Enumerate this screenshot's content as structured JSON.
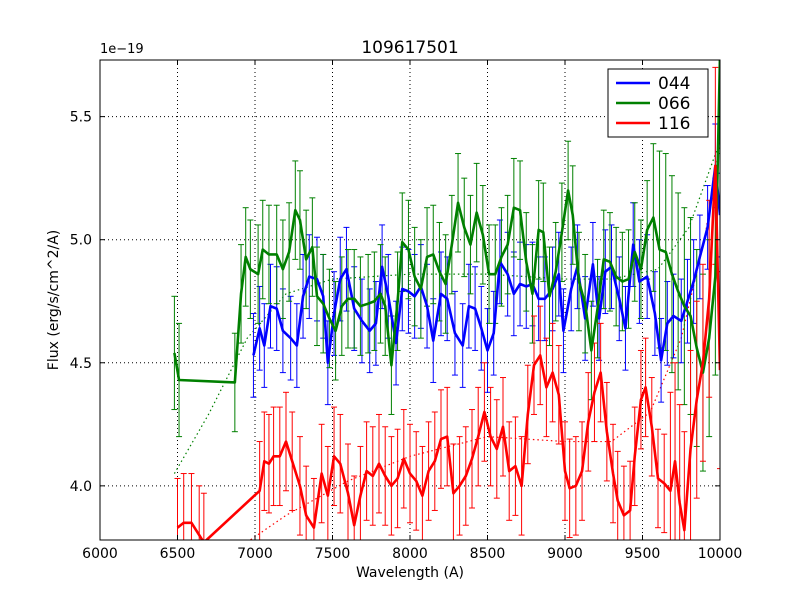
{
  "chart_data": {
    "type": "line",
    "title": "109617501",
    "xlabel": "Wavelength (A)",
    "ylabel": "Flux (erg/s/cm^2/A)",
    "y_offset_label": "1e−19",
    "xlim": [
      6000,
      10000
    ],
    "ylim": [
      3.78,
      5.73
    ],
    "x_ticks": [
      6000,
      6500,
      7000,
      7500,
      8000,
      8500,
      9000,
      9500,
      10000
    ],
    "x_tick_labels": [
      "6000",
      "6500",
      "7000",
      "7500",
      "8000",
      "8500",
      "9000",
      "9500",
      "10000"
    ],
    "y_ticks": [
      4.0,
      4.5,
      5.0,
      5.5
    ],
    "y_tick_labels": [
      "4.0",
      "4.5",
      "5.0",
      "5.5"
    ],
    "grid": true,
    "legend_position": "top-right",
    "series": [
      {
        "name": "044",
        "color": "#0000ff",
        "x": [
          6990,
          7030,
          7060,
          7100,
          7140,
          7180,
          7230,
          7270,
          7310,
          7350,
          7400,
          7440,
          7470,
          7510,
          7550,
          7590,
          7640,
          7690,
          7740,
          7780,
          7820,
          7860,
          7910,
          7950,
          7990,
          8030,
          8070,
          8110,
          8150,
          8200,
          8240,
          8290,
          8340,
          8380,
          8420,
          8460,
          8500,
          8540,
          8580,
          8630,
          8670,
          8710,
          8750,
          8790,
          8830,
          8870,
          8920,
          8960,
          8990,
          9040,
          9080,
          9130,
          9180,
          9220,
          9260,
          9300,
          9350,
          9390,
          9440,
          9480,
          9530,
          9580,
          9620,
          9660,
          9700,
          9750,
          9790,
          9830,
          9870,
          9920,
          9970,
          10000
        ],
        "y": [
          4.53,
          4.64,
          4.57,
          4.73,
          4.72,
          4.63,
          4.6,
          4.57,
          4.77,
          4.85,
          4.84,
          4.77,
          4.5,
          4.7,
          4.84,
          4.88,
          4.72,
          4.67,
          4.63,
          4.66,
          4.89,
          4.77,
          4.58,
          4.8,
          4.79,
          4.77,
          4.81,
          4.73,
          4.59,
          4.78,
          4.76,
          4.62,
          4.57,
          4.73,
          4.72,
          4.64,
          4.55,
          4.62,
          4.91,
          4.86,
          4.78,
          4.82,
          4.81,
          4.82,
          4.76,
          4.76,
          4.8,
          4.86,
          4.63,
          4.8,
          4.89,
          4.68,
          4.9,
          4.68,
          4.87,
          4.89,
          4.76,
          4.64,
          4.98,
          4.83,
          4.85,
          4.7,
          4.51,
          4.66,
          4.69,
          4.67,
          4.75,
          4.83,
          4.93,
          5.05,
          5.3,
          5.1
        ],
        "err": [
          0.17,
          0.17,
          0.17,
          0.17,
          0.17,
          0.17,
          0.17,
          0.17,
          0.17,
          0.17,
          0.17,
          0.17,
          0.17,
          0.17,
          0.17,
          0.17,
          0.17,
          0.17,
          0.17,
          0.17,
          0.17,
          0.17,
          0.17,
          0.17,
          0.17,
          0.17,
          0.17,
          0.17,
          0.17,
          0.17,
          0.17,
          0.17,
          0.17,
          0.17,
          0.17,
          0.17,
          0.17,
          0.17,
          0.17,
          0.17,
          0.17,
          0.17,
          0.17,
          0.17,
          0.17,
          0.17,
          0.17,
          0.17,
          0.17,
          0.17,
          0.17,
          0.17,
          0.17,
          0.17,
          0.17,
          0.17,
          0.17,
          0.17,
          0.17,
          0.17,
          0.17,
          0.17,
          0.17,
          0.17,
          0.17,
          0.17,
          0.17,
          0.17,
          0.17,
          0.17,
          0.17,
          0.17
        ]
      },
      {
        "name": "066",
        "color": "#008000",
        "x": [
          6480,
          6510,
          6870,
          6910,
          6940,
          6970,
          7020,
          7050,
          7090,
          7140,
          7180,
          7220,
          7260,
          7290,
          7330,
          7370,
          7400,
          7440,
          7480,
          7520,
          7560,
          7600,
          7640,
          7680,
          7730,
          7770,
          7810,
          7840,
          7880,
          7920,
          7950,
          7990,
          8030,
          8070,
          8110,
          8150,
          8190,
          8230,
          8270,
          8310,
          8350,
          8390,
          8430,
          8470,
          8510,
          8550,
          8590,
          8630,
          8670,
          8710,
          8750,
          8790,
          8830,
          8860,
          8900,
          8940,
          8980,
          9020,
          9050,
          9090,
          9130,
          9170,
          9210,
          9250,
          9290,
          9330,
          9370,
          9410,
          9450,
          9490,
          9530,
          9570,
          9610,
          9650,
          9690,
          9730,
          9770,
          9810,
          9850,
          9890,
          9930,
          9970,
          10000
        ],
        "y": [
          4.54,
          4.43,
          4.42,
          4.78,
          4.93,
          4.88,
          4.86,
          4.96,
          4.94,
          4.94,
          4.88,
          4.95,
          5.12,
          5.08,
          4.92,
          4.97,
          4.77,
          4.74,
          4.68,
          4.63,
          4.73,
          4.76,
          4.76,
          4.73,
          4.74,
          4.75,
          4.78,
          4.73,
          4.49,
          4.75,
          4.99,
          4.96,
          4.85,
          4.8,
          4.93,
          4.94,
          4.87,
          4.82,
          4.98,
          5.15,
          5.05,
          4.98,
          5.11,
          5.02,
          4.86,
          4.86,
          4.93,
          4.98,
          5.13,
          5.12,
          4.91,
          4.78,
          5.04,
          5.03,
          4.77,
          4.87,
          5.03,
          5.2,
          5.1,
          4.83,
          4.74,
          4.55,
          4.72,
          4.92,
          4.91,
          4.85,
          4.83,
          4.84,
          4.95,
          4.88,
          5.04,
          5.09,
          4.96,
          4.95,
          4.86,
          4.79,
          4.73,
          4.69,
          4.56,
          4.46,
          4.6,
          4.85,
          5.75
        ],
        "err": [
          0.23,
          0.23,
          0.2,
          0.2,
          0.2,
          0.2,
          0.2,
          0.2,
          0.2,
          0.2,
          0.2,
          0.2,
          0.2,
          0.2,
          0.2,
          0.2,
          0.2,
          0.2,
          0.2,
          0.2,
          0.2,
          0.2,
          0.2,
          0.2,
          0.2,
          0.2,
          0.2,
          0.2,
          0.2,
          0.2,
          0.2,
          0.2,
          0.2,
          0.2,
          0.2,
          0.2,
          0.2,
          0.2,
          0.2,
          0.2,
          0.2,
          0.2,
          0.2,
          0.2,
          0.2,
          0.2,
          0.2,
          0.2,
          0.2,
          0.2,
          0.2,
          0.2,
          0.2,
          0.2,
          0.2,
          0.2,
          0.2,
          0.2,
          0.2,
          0.2,
          0.2,
          0.2,
          0.2,
          0.2,
          0.2,
          0.2,
          0.2,
          0.2,
          0.2,
          0.2,
          0.2,
          0.3,
          0.4,
          0.4,
          0.4,
          0.4,
          0.4,
          0.4,
          0.4,
          0.4,
          0.4,
          0.4,
          0.4
        ]
      },
      {
        "name": "116",
        "color": "#ff0000",
        "x": [
          6500,
          6540,
          6590,
          6640,
          6670,
          7030,
          7060,
          7090,
          7120,
          7160,
          7200,
          7240,
          7290,
          7330,
          7380,
          7430,
          7470,
          7510,
          7550,
          7600,
          7640,
          7680,
          7720,
          7760,
          7800,
          7840,
          7880,
          7920,
          7960,
          8000,
          8040,
          8080,
          8120,
          8160,
          8200,
          8240,
          8280,
          8320,
          8360,
          8400,
          8440,
          8480,
          8520,
          8560,
          8600,
          8640,
          8680,
          8720,
          8760,
          8800,
          8840,
          8880,
          8920,
          8960,
          9000,
          9030,
          9070,
          9110,
          9150,
          9190,
          9230,
          9270,
          9310,
          9340,
          9380,
          9420,
          9450,
          9490,
          9520,
          9560,
          9600,
          9640,
          9680,
          9710,
          9740,
          9770,
          9810,
          9850,
          9890,
          9930,
          9970,
          10000
        ],
        "y": [
          3.83,
          3.85,
          3.85,
          3.8,
          3.77,
          3.98,
          4.1,
          4.09,
          4.12,
          4.12,
          4.18,
          4.1,
          4.0,
          3.88,
          3.83,
          4.05,
          3.96,
          4.12,
          4.09,
          3.97,
          3.84,
          3.96,
          4.06,
          4.04,
          4.09,
          4.04,
          4.0,
          4.03,
          4.11,
          4.05,
          4.02,
          3.96,
          4.06,
          4.1,
          4.19,
          4.2,
          3.97,
          4.0,
          4.04,
          4.11,
          4.2,
          4.3,
          4.2,
          4.15,
          4.24,
          4.06,
          4.08,
          4.0,
          4.29,
          4.49,
          4.53,
          4.4,
          4.46,
          4.37,
          4.06,
          3.99,
          4.0,
          4.06,
          4.26,
          4.38,
          4.46,
          4.22,
          4.05,
          3.94,
          3.88,
          3.9,
          4.12,
          4.35,
          4.4,
          4.24,
          4.03,
          4.01,
          3.98,
          4.1,
          3.93,
          3.82,
          4.15,
          4.35,
          4.5,
          4.76,
          5.3,
          4.47
        ],
        "err": [
          0.2,
          0.2,
          0.2,
          0.2,
          0.2,
          0.2,
          0.2,
          0.2,
          0.2,
          0.2,
          0.2,
          0.2,
          0.2,
          0.2,
          0.2,
          0.2,
          0.2,
          0.2,
          0.2,
          0.2,
          0.2,
          0.2,
          0.2,
          0.2,
          0.2,
          0.2,
          0.2,
          0.2,
          0.2,
          0.2,
          0.2,
          0.2,
          0.2,
          0.2,
          0.2,
          0.2,
          0.2,
          0.2,
          0.2,
          0.2,
          0.2,
          0.2,
          0.2,
          0.2,
          0.2,
          0.2,
          0.2,
          0.2,
          0.2,
          0.2,
          0.2,
          0.2,
          0.2,
          0.2,
          0.2,
          0.2,
          0.2,
          0.2,
          0.2,
          0.2,
          0.2,
          0.2,
          0.2,
          0.2,
          0.2,
          0.2,
          0.2,
          0.2,
          0.2,
          0.2,
          0.2,
          0.2,
          0.4,
          0.4,
          0.4,
          0.4,
          0.4,
          0.4,
          0.4,
          0.4,
          0.4,
          0.4
        ]
      }
    ],
    "dotted_fits": [
      {
        "series": "066",
        "color": "#008000",
        "x": [
          6480,
          6700,
          6950,
          7200,
          7500,
          8000,
          8500,
          9000,
          9300,
          9600,
          9800,
          10000
        ],
        "y": [
          4.05,
          4.29,
          4.6,
          4.78,
          4.84,
          4.86,
          4.86,
          4.84,
          4.84,
          4.88,
          5.05,
          5.4
        ]
      },
      {
        "series": "116",
        "color": "#ff0000",
        "x": [
          6900,
          7200,
          7600,
          8000,
          8500,
          9000,
          9300,
          9550,
          9750,
          9900,
          10000
        ],
        "y": [
          3.75,
          3.88,
          4.02,
          4.12,
          4.2,
          4.18,
          4.18,
          4.3,
          4.6,
          5.0,
          5.4
        ]
      }
    ]
  }
}
